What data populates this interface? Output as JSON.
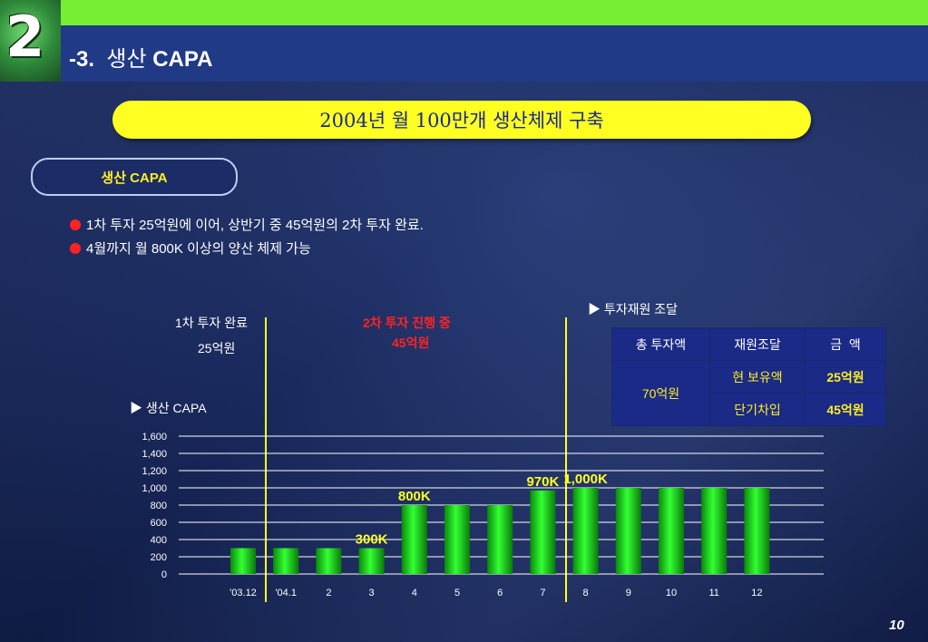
{
  "section_number": "2",
  "title_prefix": "-3.",
  "title_korean": "생산",
  "title_suffix": "CAPA",
  "banner": "2004년 월 100만개 생산체제 구축",
  "pill": "생산 CAPA",
  "bullets": [
    "1차 투자 25억원에 이어, 상반기 중 45억원의 2차 투자 완료.",
    "4월까지 월 800K 이상의 양산 체제 가능"
  ],
  "annotations": {
    "phase1_line1": "1차 투자 완료",
    "phase1_line2": "25억원",
    "phase2_line1": "2차 투자 진행 중",
    "phase2_line2": "45억원",
    "chart_heading": "▶ 생산 CAPA",
    "table_heading": "▶ 투자재원 조달"
  },
  "table": {
    "headers": [
      "총 투자액",
      "재원조달",
      "금  액"
    ],
    "total": "70억원",
    "rows": [
      {
        "source": "현 보유액",
        "amount": "25억원"
      },
      {
        "source": "단기차입",
        "amount": "45억원"
      }
    ]
  },
  "colors": {
    "bar": "#22cc22",
    "highlight_text": "#ffff22",
    "header_band": "#213a86",
    "top_bar": "#77ee33"
  },
  "page_number": "10",
  "chart_data": {
    "type": "bar",
    "categories": [
      "'03.12",
      "'04.1",
      "2",
      "3",
      "4",
      "5",
      "6",
      "7",
      "8",
      "9",
      "10",
      "11",
      "12"
    ],
    "values": [
      300,
      300,
      300,
      300,
      800,
      800,
      800,
      970,
      1000,
      1000,
      1000,
      1000,
      1000
    ],
    "ylim": [
      0,
      1600
    ],
    "yticks": [
      "0",
      "200",
      "400",
      "600",
      "800",
      "1,000",
      "1,200",
      "1,400",
      "1,600"
    ],
    "data_labels": [
      {
        "category_index": 3,
        "text": "300K"
      },
      {
        "category_index": 4,
        "text": "800K"
      },
      {
        "category_index": 7,
        "text": "970K"
      },
      {
        "category_index": 8,
        "text": "1,000K"
      }
    ],
    "grid": true,
    "title": "",
    "xlabel": "",
    "ylabel": ""
  }
}
